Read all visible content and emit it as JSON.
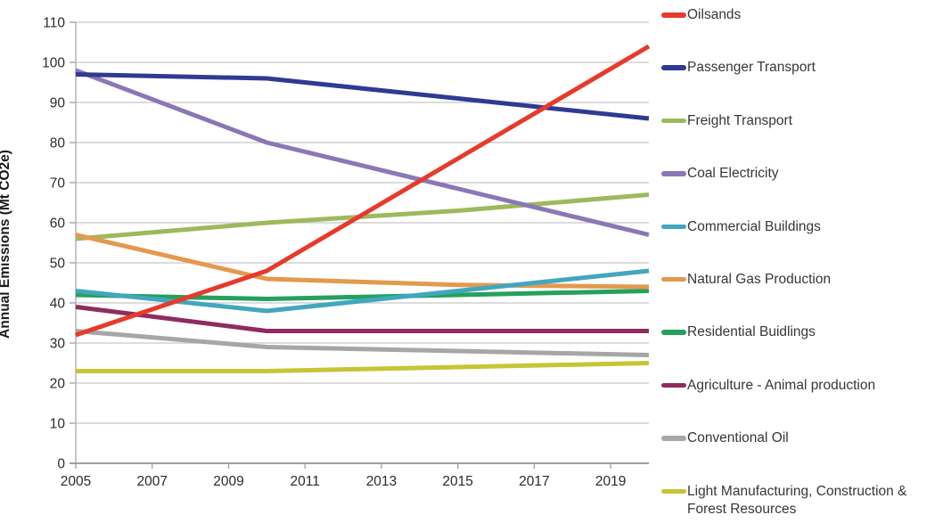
{
  "chart_data": {
    "type": "line",
    "title": "",
    "xlabel": "",
    "ylabel": "Annual Emissions (Mt CO2e)",
    "xlim": [
      2005,
      2020
    ],
    "ylim": [
      0,
      110
    ],
    "x": [
      2005,
      2010,
      2015,
      2020
    ],
    "x_axis_ticks": [
      "2005",
      "2007",
      "2009",
      "2011",
      "2013",
      "2015",
      "2017",
      "2019"
    ],
    "y_axis_ticks": [
      "0",
      "10",
      "20",
      "30",
      "40",
      "50",
      "60",
      "70",
      "80",
      "90",
      "100",
      "110"
    ],
    "grid": "horizontal",
    "legend_position": "right",
    "series": [
      {
        "name": "Oilsands",
        "color": "#e73a2b",
        "values": [
          32,
          48,
          76,
          104
        ]
      },
      {
        "name": "Passenger Transport",
        "color": "#2e3b93",
        "values": [
          97,
          96,
          91,
          86
        ]
      },
      {
        "name": "Freight Transport",
        "color": "#9cba5c",
        "values": [
          56,
          60,
          63,
          67
        ]
      },
      {
        "name": "Coal Electricity",
        "color": "#8b77b5",
        "values": [
          98,
          80,
          68.5,
          57
        ]
      },
      {
        "name": "Commercial Buildings",
        "color": "#41a7bd",
        "values": [
          43,
          38,
          43,
          48
        ]
      },
      {
        "name": "Natural Gas Production",
        "color": "#e3994e",
        "values": [
          57,
          46,
          44.5,
          44
        ]
      },
      {
        "name": "Residential Buidlings",
        "color": "#23a15d",
        "values": [
          42,
          41,
          42,
          43
        ]
      },
      {
        "name": "Agriculture - Animal production",
        "color": "#902b5f",
        "values": [
          39,
          33,
          33,
          33
        ]
      },
      {
        "name": "Conventional Oil",
        "color": "#a6a6a6",
        "values": [
          33,
          29,
          28,
          27
        ]
      },
      {
        "name": "Light Manufacturing, Construction & Forest Resources",
        "color": "#c7c534",
        "values": [
          23,
          23,
          24,
          25
        ]
      }
    ],
    "style": {
      "gridline_color": "#c6c6c6",
      "axis_color": "#9f9f9f",
      "tick_label_color": "#2b2b2b",
      "line_width": 5
    }
  }
}
